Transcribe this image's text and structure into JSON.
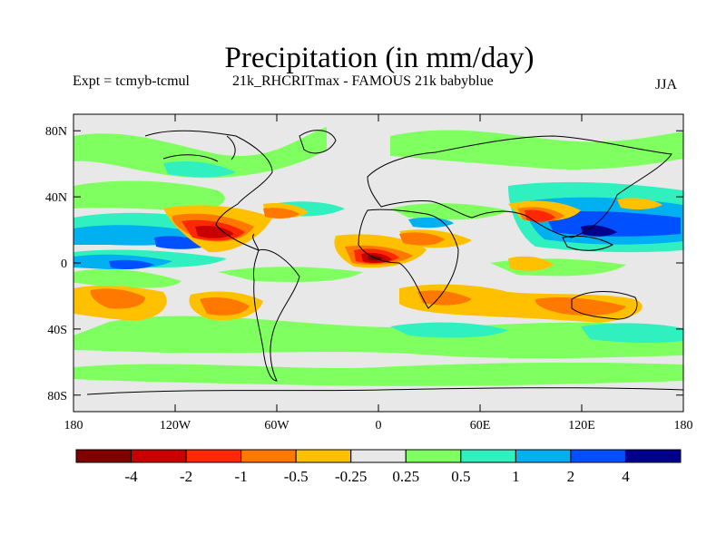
{
  "title": "Precipitation (in mm/day)",
  "subtitle_left": "Expt = tcmyb-tcmul",
  "subtitle_center": "21k_RHCRITmax - FAMOUS 21k babyblue",
  "subtitle_right": "JJA",
  "lon_ticks": [
    "180",
    "120W",
    "60W",
    "0",
    "60E",
    "120E",
    "180"
  ],
  "lat_ticks": [
    "80N",
    "40N",
    "0",
    "40S",
    "80S"
  ],
  "colorbar": {
    "labels": [
      "-4",
      "-2",
      "-1",
      "-0.5",
      "-0.25",
      "0.25",
      "0.5",
      "1",
      "2",
      "4"
    ],
    "colors": [
      "#800000",
      "#c80000",
      "#ff2800",
      "#ff7800",
      "#ffc000",
      "#e8e8e8",
      "#80ff60",
      "#30f0c0",
      "#00b0f0",
      "#0050ff",
      "#00008c"
    ]
  },
  "map_colors": {
    "background": "#e8e8e8",
    "coast": "#000000"
  }
}
